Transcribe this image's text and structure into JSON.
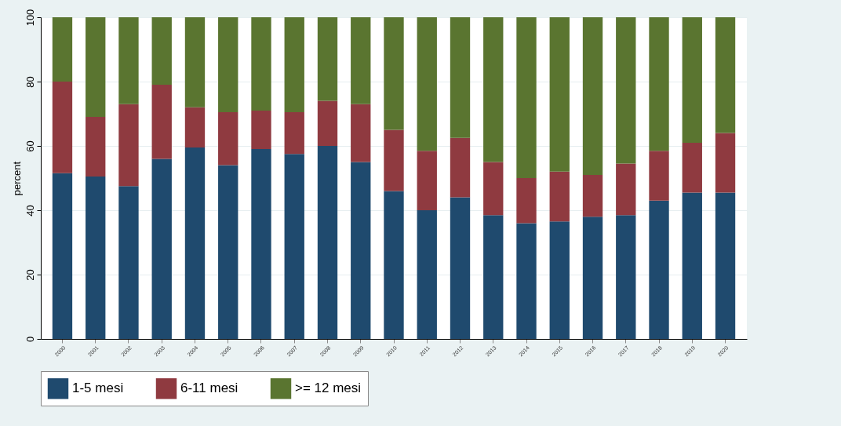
{
  "chart_data": {
    "type": "bar",
    "stacked": true,
    "ylabel": "percent",
    "categories": [
      "2000",
      "2001",
      "2002",
      "2003",
      "2004",
      "2005",
      "2006",
      "2007",
      "2008",
      "2009",
      "2010",
      "2011",
      "2012",
      "2013",
      "2014",
      "2015",
      "2016",
      "2017",
      "2018",
      "2019",
      "2020"
    ],
    "series": [
      {
        "name": "1-5 mesi",
        "color": "#1f4a6e",
        "values": [
          51.5,
          50.5,
          47.5,
          56,
          59.5,
          54,
          59,
          57.5,
          60,
          55,
          46,
          40,
          44,
          38.5,
          36,
          36.5,
          38,
          38.5,
          43,
          45.5,
          45.5
        ]
      },
      {
        "name": "6-11 mesi",
        "color": "#8f3a40",
        "values": [
          28.5,
          18.5,
          25.5,
          23,
          12.5,
          16.5,
          12,
          13,
          14,
          18,
          19,
          18.5,
          18.5,
          16.5,
          14,
          15.5,
          13,
          16,
          15.5,
          15.5,
          18.5
        ]
      },
      {
        "name": ">= 12 mesi",
        "color": "#5a7530",
        "values": [
          20,
          31,
          27,
          21,
          28,
          29.5,
          29,
          29.5,
          26,
          27,
          35,
          41.5,
          37.5,
          45,
          50,
          48,
          49,
          45.5,
          41.5,
          39,
          36
        ]
      }
    ],
    "ylim": [
      0,
      100
    ],
    "yticks": [
      0,
      20,
      40,
      60,
      80,
      100
    ],
    "grid": "y",
    "legend": "bottom"
  }
}
